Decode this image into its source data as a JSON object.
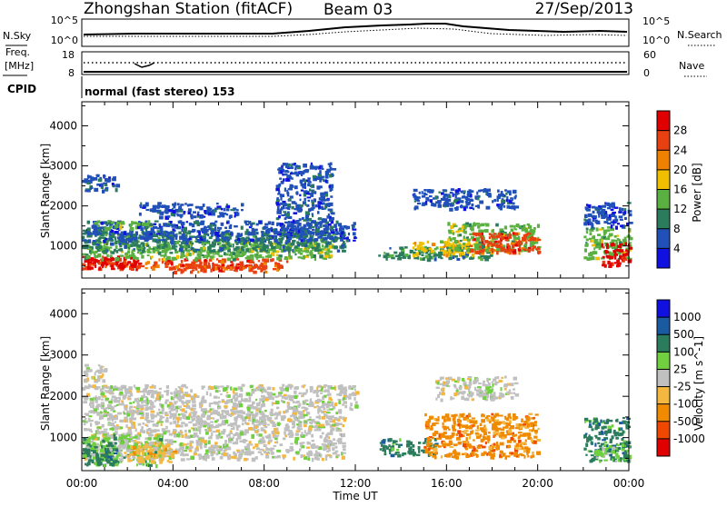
{
  "header": {
    "station": "Zhongshan Station (fitACF)",
    "beam": "Beam 03",
    "date": "27/Sep/2013"
  },
  "strip_panels": {
    "nsky_label": "N.Sky",
    "nsky_ticks": [
      "10^5",
      "10^0"
    ],
    "nsearch_label": "N.Search",
    "nsearch_ticks": [
      "10^5",
      "10^0"
    ],
    "freq_label_1": "Freq.",
    "freq_label_2": "[MHz]",
    "freq_ticks": [
      "18",
      "8"
    ],
    "nave_label": "Nave",
    "nave_ticks": [
      "60",
      "0"
    ],
    "cpid_label": "CPID",
    "cpid_text": "normal (fast stereo) 153"
  },
  "chart_data": [
    {
      "type": "heatmap",
      "name": "power",
      "ylabel": "Slant Range [km]",
      "yticks": [
        1000,
        2000,
        3000,
        4000
      ],
      "ylim": [
        200,
        4600
      ],
      "xlim": [
        0,
        24
      ],
      "colorbar": {
        "label": "Power [dB]",
        "ticks": [
          "28",
          "24",
          "20",
          "16",
          "12",
          "8",
          "4"
        ],
        "colors": [
          "#1010e0",
          "#2050b8",
          "#2a7c5c",
          "#5ab040",
          "#f0c000",
          "#f08000",
          "#e84010",
          "#e00000"
        ]
      },
      "blobs": [
        {
          "t0": 0.0,
          "t1": 9.0,
          "r0": 450,
          "r1": 700,
          "c": 6
        },
        {
          "t0": 0.0,
          "t1": 2.5,
          "r0": 450,
          "r1": 800,
          "c": 7
        },
        {
          "t0": 4.0,
          "t1": 8.0,
          "r0": 380,
          "r1": 560,
          "c": 6
        },
        {
          "t0": 0.0,
          "t1": 11.0,
          "r0": 700,
          "r1": 1150,
          "c": 3
        },
        {
          "t0": 0.0,
          "t1": 11.5,
          "r0": 900,
          "r1": 1400,
          "c": 2
        },
        {
          "t0": 0.0,
          "t1": 12.0,
          "r0": 1150,
          "r1": 1650,
          "c": 1
        },
        {
          "t0": 0.5,
          "t1": 3.0,
          "r0": 1450,
          "r1": 1650,
          "c": 3
        },
        {
          "t0": 0.0,
          "t1": 1.5,
          "r0": 2400,
          "r1": 2800,
          "c": 1
        },
        {
          "t0": 2.5,
          "t1": 7.0,
          "r0": 1750,
          "r1": 2100,
          "c": 1
        },
        {
          "t0": 8.5,
          "t1": 11.0,
          "r0": 1300,
          "r1": 3100,
          "c": 1
        },
        {
          "t0": 13.0,
          "t1": 18.0,
          "r0": 700,
          "r1": 1000,
          "c": 2
        },
        {
          "t0": 14.5,
          "t1": 18.0,
          "r0": 800,
          "r1": 1150,
          "c": 4
        },
        {
          "t0": 16.0,
          "t1": 20.0,
          "r0": 900,
          "r1": 1600,
          "c": 3
        },
        {
          "t0": 17.0,
          "t1": 20.0,
          "r0": 850,
          "r1": 1350,
          "c": 6
        },
        {
          "t0": 14.5,
          "t1": 19.0,
          "r0": 1950,
          "r1": 2450,
          "c": 1
        },
        {
          "t0": 22.0,
          "t1": 24.0,
          "r0": 700,
          "r1": 1500,
          "c": 3
        },
        {
          "t0": 22.8,
          "t1": 24.0,
          "r0": 500,
          "r1": 1100,
          "c": 7
        },
        {
          "t0": 22.0,
          "t1": 24.0,
          "r0": 1500,
          "r1": 2100,
          "c": 1
        }
      ]
    },
    {
      "type": "heatmap",
      "name": "velocity",
      "ylabel": "Slant Range [km]",
      "xlabel": "Time UT",
      "xticks": [
        "00:00",
        "04:00",
        "08:00",
        "12:00",
        "16:00",
        "20:00",
        "00:00"
      ],
      "yticks": [
        1000,
        2000,
        3000,
        4000
      ],
      "ylim": [
        200,
        4600
      ],
      "xlim": [
        0,
        24
      ],
      "colorbar": {
        "label": "Velocity [m s^-1]",
        "ticks": [
          "1000",
          "500",
          "100",
          "25",
          "-25",
          "-100",
          "-500",
          "-1000"
        ],
        "colors": [
          "#e00000",
          "#f04800",
          "#f08a00",
          "#f4b840",
          "#c0c0c0",
          "#70d040",
          "#2a7c5c",
          "#1a5aa0",
          "#1010e0"
        ]
      },
      "blobs": [
        {
          "t0": 0.0,
          "t1": 11.5,
          "r0": 500,
          "r1": 1700,
          "c": 4
        },
        {
          "t0": 0.0,
          "t1": 12.0,
          "r0": 1700,
          "r1": 2300,
          "c": 4
        },
        {
          "t0": 0.0,
          "t1": 3.5,
          "r0": 350,
          "r1": 1100,
          "c": 5
        },
        {
          "t0": 0.0,
          "t1": 1.5,
          "r0": 350,
          "r1": 900,
          "c": 6
        },
        {
          "t0": 2.0,
          "t1": 4.0,
          "r0": 400,
          "r1": 900,
          "c": 3
        },
        {
          "t0": 0.0,
          "t1": 1.0,
          "r0": 2400,
          "r1": 2800,
          "c": 4
        },
        {
          "t0": 13.0,
          "t1": 15.5,
          "r0": 600,
          "r1": 1000,
          "c": 6
        },
        {
          "t0": 15.0,
          "t1": 20.0,
          "r0": 550,
          "r1": 1600,
          "c": 2
        },
        {
          "t0": 15.5,
          "t1": 19.0,
          "r0": 1950,
          "r1": 2500,
          "c": 4
        },
        {
          "t0": 22.0,
          "t1": 24.0,
          "r0": 450,
          "r1": 1500,
          "c": 6
        },
        {
          "t0": 22.5,
          "t1": 24.0,
          "r0": 450,
          "r1": 850,
          "c": 5
        }
      ]
    }
  ]
}
